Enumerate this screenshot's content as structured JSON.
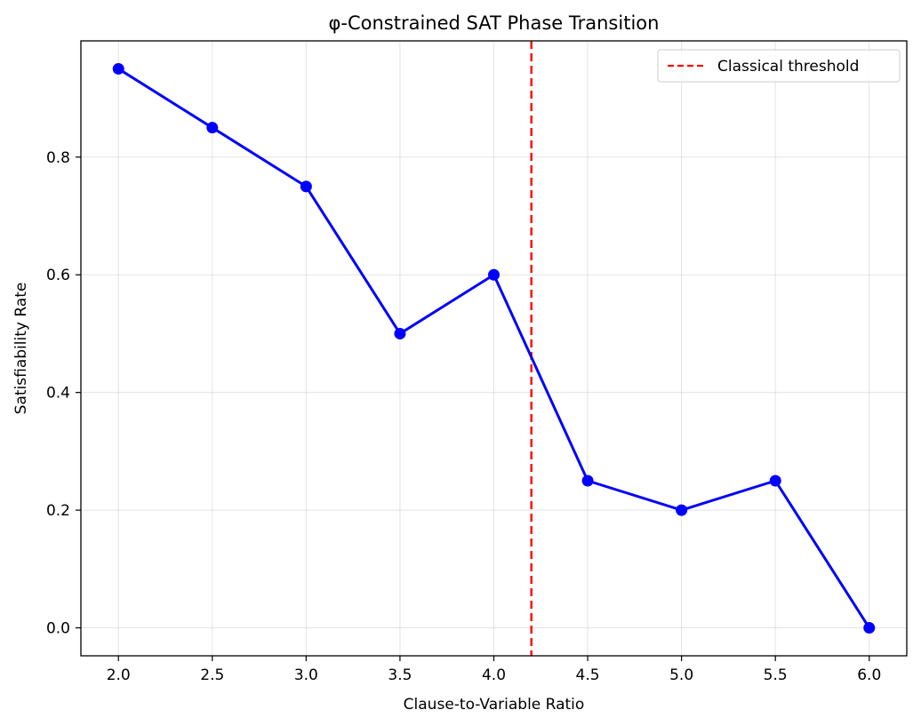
{
  "chart_data": {
    "type": "line",
    "title": "φ-Constrained SAT Phase Transition",
    "xlabel": "Clause-to-Variable Ratio",
    "ylabel": "Satisfiability Rate",
    "x": [
      2.0,
      2.5,
      3.0,
      3.5,
      4.0,
      4.5,
      5.0,
      5.5,
      6.0
    ],
    "series": [
      {
        "values": [
          0.95,
          0.85,
          0.75,
          0.5,
          0.6,
          0.25,
          0.2,
          0.25,
          0.0
        ],
        "color": "#0000ff",
        "marker": "circle"
      }
    ],
    "xlim": [
      1.8,
      6.2
    ],
    "ylim": [
      -0.0475,
      0.9975
    ],
    "xticks": [
      "2.0",
      "2.5",
      "3.0",
      "3.5",
      "4.0",
      "4.5",
      "5.0",
      "5.5",
      "6.0"
    ],
    "yticks": [
      "0.0",
      "0.2",
      "0.4",
      "0.6",
      "0.8"
    ],
    "grid": true,
    "reference_lines": [
      {
        "orientation": "vertical",
        "x": 4.2,
        "label": "Classical threshold",
        "color": "#ff0000",
        "style": "dashed"
      }
    ],
    "legend": {
      "position": "top-right",
      "entries": [
        "Classical threshold"
      ]
    }
  }
}
